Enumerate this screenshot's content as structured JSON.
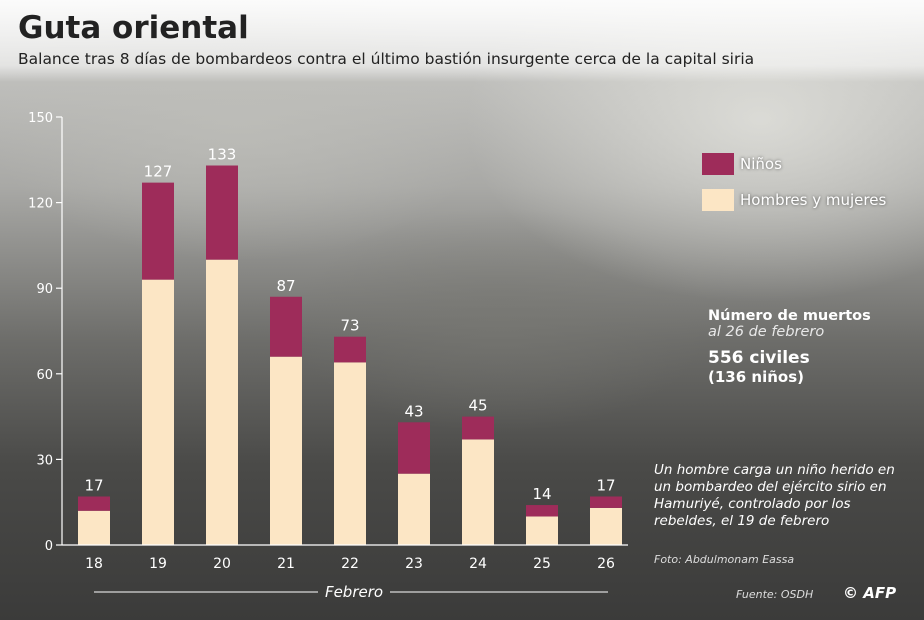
{
  "header": {
    "title": "Guta oriental",
    "subtitle": "Balance tras 8 días de bombardeos contra el último bastión insurgente cerca de la capital siria"
  },
  "chart_data": {
    "type": "bar",
    "stacked": true,
    "categories": [
      "18",
      "19",
      "20",
      "21",
      "22",
      "23",
      "24",
      "25",
      "26"
    ],
    "series": [
      {
        "name": "Hombres y mujeres",
        "values": [
          12,
          93,
          100,
          66,
          64,
          25,
          37,
          10,
          13
        ],
        "color": "#fce6c5"
      },
      {
        "name": "Niños",
        "values": [
          5,
          34,
          33,
          21,
          9,
          18,
          8,
          4,
          4
        ],
        "color": "#9e2c5a"
      }
    ],
    "totals": [
      "17",
      "127",
      "133",
      "87",
      "73",
      "43",
      "45",
      "14",
      "17"
    ],
    "xlabel": "Febrero",
    "ylabel": "",
    "ylim": [
      0,
      150
    ],
    "yticks": [
      "0",
      "30",
      "60",
      "90",
      "120",
      "150"
    ],
    "legend_position": "top-right",
    "grid": false
  },
  "legend": {
    "children": "Niños",
    "adults": "Hombres y mujeres"
  },
  "stats": {
    "title": "Número de muertos",
    "date": "al 26 de febrero",
    "total": "556 civiles",
    "children": "(136 niños)"
  },
  "caption": "Un hombre carga un niño herido en un bombardeo del ejército sirio en Hamuriyé, controlado por los rebeldes, el 19 de febrero",
  "photo_credit": "Foto: Abdulmonam Eassa",
  "source": "Fuente: OSDH",
  "agency": "© AFP",
  "colors": {
    "children": "#9e2c5a",
    "adults": "#fce6c5",
    "text": "#ffffff"
  }
}
